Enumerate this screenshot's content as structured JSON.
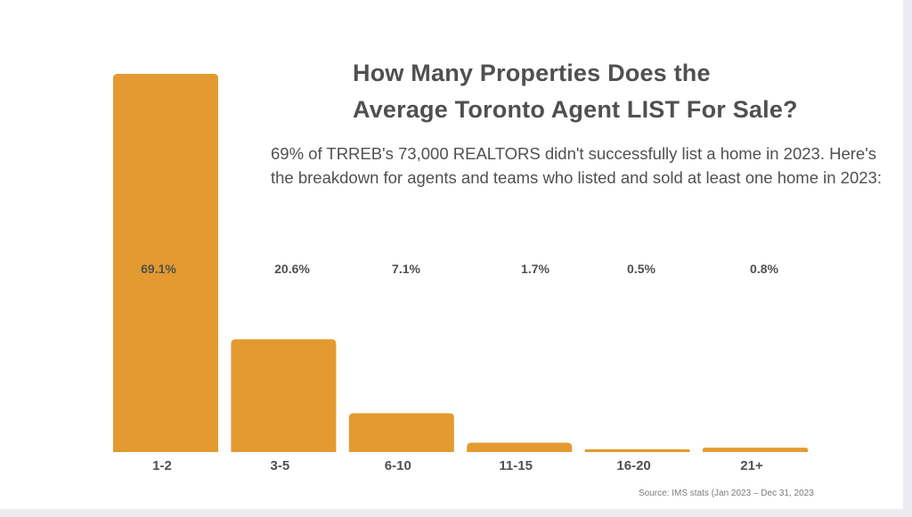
{
  "title_line1": "How Many Properties Does the",
  "title_line2": "Average Toronto Agent LIST For Sale?",
  "subtitle": "69% of TRREB's 73,000 REALTORS didn't successfully list a home in 2023. Here's the breakdown for agents and teams who listed and sold at least one home in 2023:",
  "source": "Source: IMS stats (Jan 2023 – Dec 31, 2023",
  "colors": {
    "bar": "#e39a31",
    "text": "#505050"
  },
  "chart_data": {
    "type": "bar",
    "categories": [
      "1-2",
      "3-5",
      "6-10",
      "11-15",
      "16-20",
      "21+"
    ],
    "values": [
      69.1,
      20.6,
      7.1,
      1.7,
      0.5,
      0.8
    ],
    "data_labels": [
      "69.1%",
      "20.6%",
      "7.1%",
      "1.7%",
      "0.5%",
      "0.8%"
    ],
    "unit": "%",
    "ylim": [
      0,
      69.1
    ],
    "grid": false,
    "legend": "none"
  }
}
